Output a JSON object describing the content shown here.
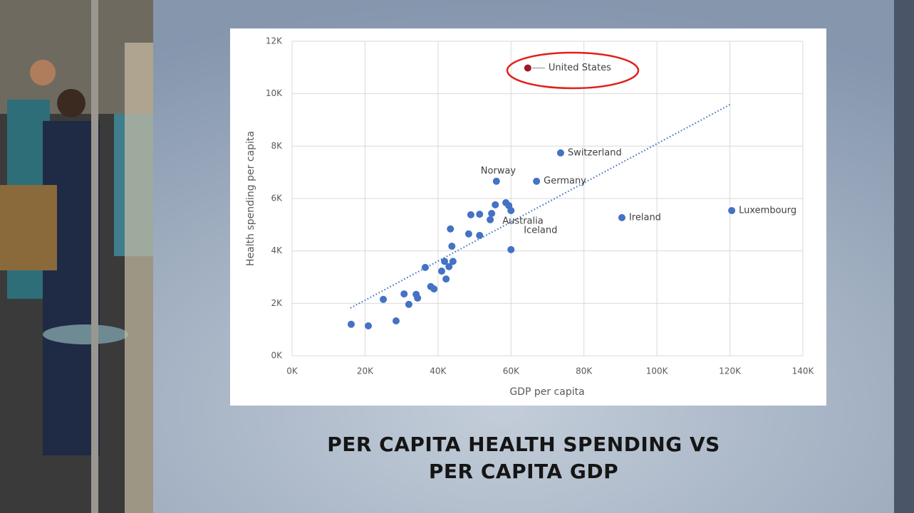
{
  "chart_data": {
    "type": "scatter",
    "title": "PER CAPITA HEALTH SPENDING VS PER CAPITA GDP",
    "x_label": "GDP per capita",
    "y_label": "Health spending per capita",
    "x": [
      16200,
      20900,
      25000,
      28500,
      30700,
      32000,
      34000,
      34400,
      36500,
      38000,
      38900,
      41000,
      41800,
      42200,
      43000,
      43400,
      43800,
      44100,
      48400,
      49000,
      51400,
      51400,
      54300,
      54700,
      55700,
      56000,
      58600,
      59400,
      60000,
      60000,
      67000,
      73600,
      64600,
      90400,
      120500
    ],
    "y": [
      1200,
      1140,
      2150,
      1330,
      2360,
      1960,
      2340,
      2200,
      3370,
      2640,
      2550,
      3230,
      3600,
      2930,
      3400,
      4840,
      4180,
      3600,
      4650,
      5380,
      5400,
      4590,
      5190,
      5430,
      5760,
      6660,
      5840,
      5730,
      5540,
      4050,
      6660,
      7740,
      10980,
      5270,
      5540
    ],
    "labels": [
      null,
      null,
      null,
      null,
      null,
      null,
      null,
      null,
      null,
      null,
      null,
      null,
      null,
      null,
      null,
      null,
      null,
      null,
      null,
      null,
      null,
      null,
      null,
      null,
      null,
      "Norway",
      null,
      "Australia",
      null,
      "Iceland",
      "Germany",
      "Switzerland",
      "United States",
      "Ireland",
      "Luxembourg"
    ],
    "colors": [
      "#4472c4",
      "#4472c4",
      "#4472c4",
      "#4472c4",
      "#4472c4",
      "#4472c4",
      "#4472c4",
      "#4472c4",
      "#4472c4",
      "#4472c4",
      "#4472c4",
      "#4472c4",
      "#4472c4",
      "#4472c4",
      "#4472c4",
      "#4472c4",
      "#4472c4",
      "#4472c4",
      "#4472c4",
      "#4472c4",
      "#4472c4",
      "#4472c4",
      "#4472c4",
      "#4472c4",
      "#4472c4",
      "#4472c4",
      "#4472c4",
      "#4472c4",
      "#4472c4",
      "#4472c4",
      "#4472c4",
      "#4472c4",
      "#a0172a",
      "#4472c4",
      "#4472c4"
    ],
    "trendline": {
      "x": [
        16000,
        120500
      ],
      "y": [
        1820,
        9620
      ],
      "color": "#4472c4"
    },
    "xlim": [
      0,
      140000
    ],
    "ylim": [
      0,
      12000
    ],
    "xticks": [
      {
        "value": 0,
        "label": "0K"
      },
      {
        "value": 20000,
        "label": "20K"
      },
      {
        "value": 40000,
        "label": "40K"
      },
      {
        "value": 60000,
        "label": "60K"
      },
      {
        "value": 80000,
        "label": "80K"
      },
      {
        "value": 100000,
        "label": "100K"
      },
      {
        "value": 120000,
        "label": "120K"
      },
      {
        "value": 140000,
        "label": "140K"
      }
    ],
    "yticks": [
      {
        "value": 0,
        "label": "0K"
      },
      {
        "value": 2000,
        "label": "2K"
      },
      {
        "value": 4000,
        "label": "4K"
      },
      {
        "value": 6000,
        "label": "6K"
      },
      {
        "value": 8000,
        "label": "8K"
      },
      {
        "value": 10000,
        "label": "10K"
      },
      {
        "value": 12000,
        "label": "12K"
      }
    ],
    "grid": true
  }
}
